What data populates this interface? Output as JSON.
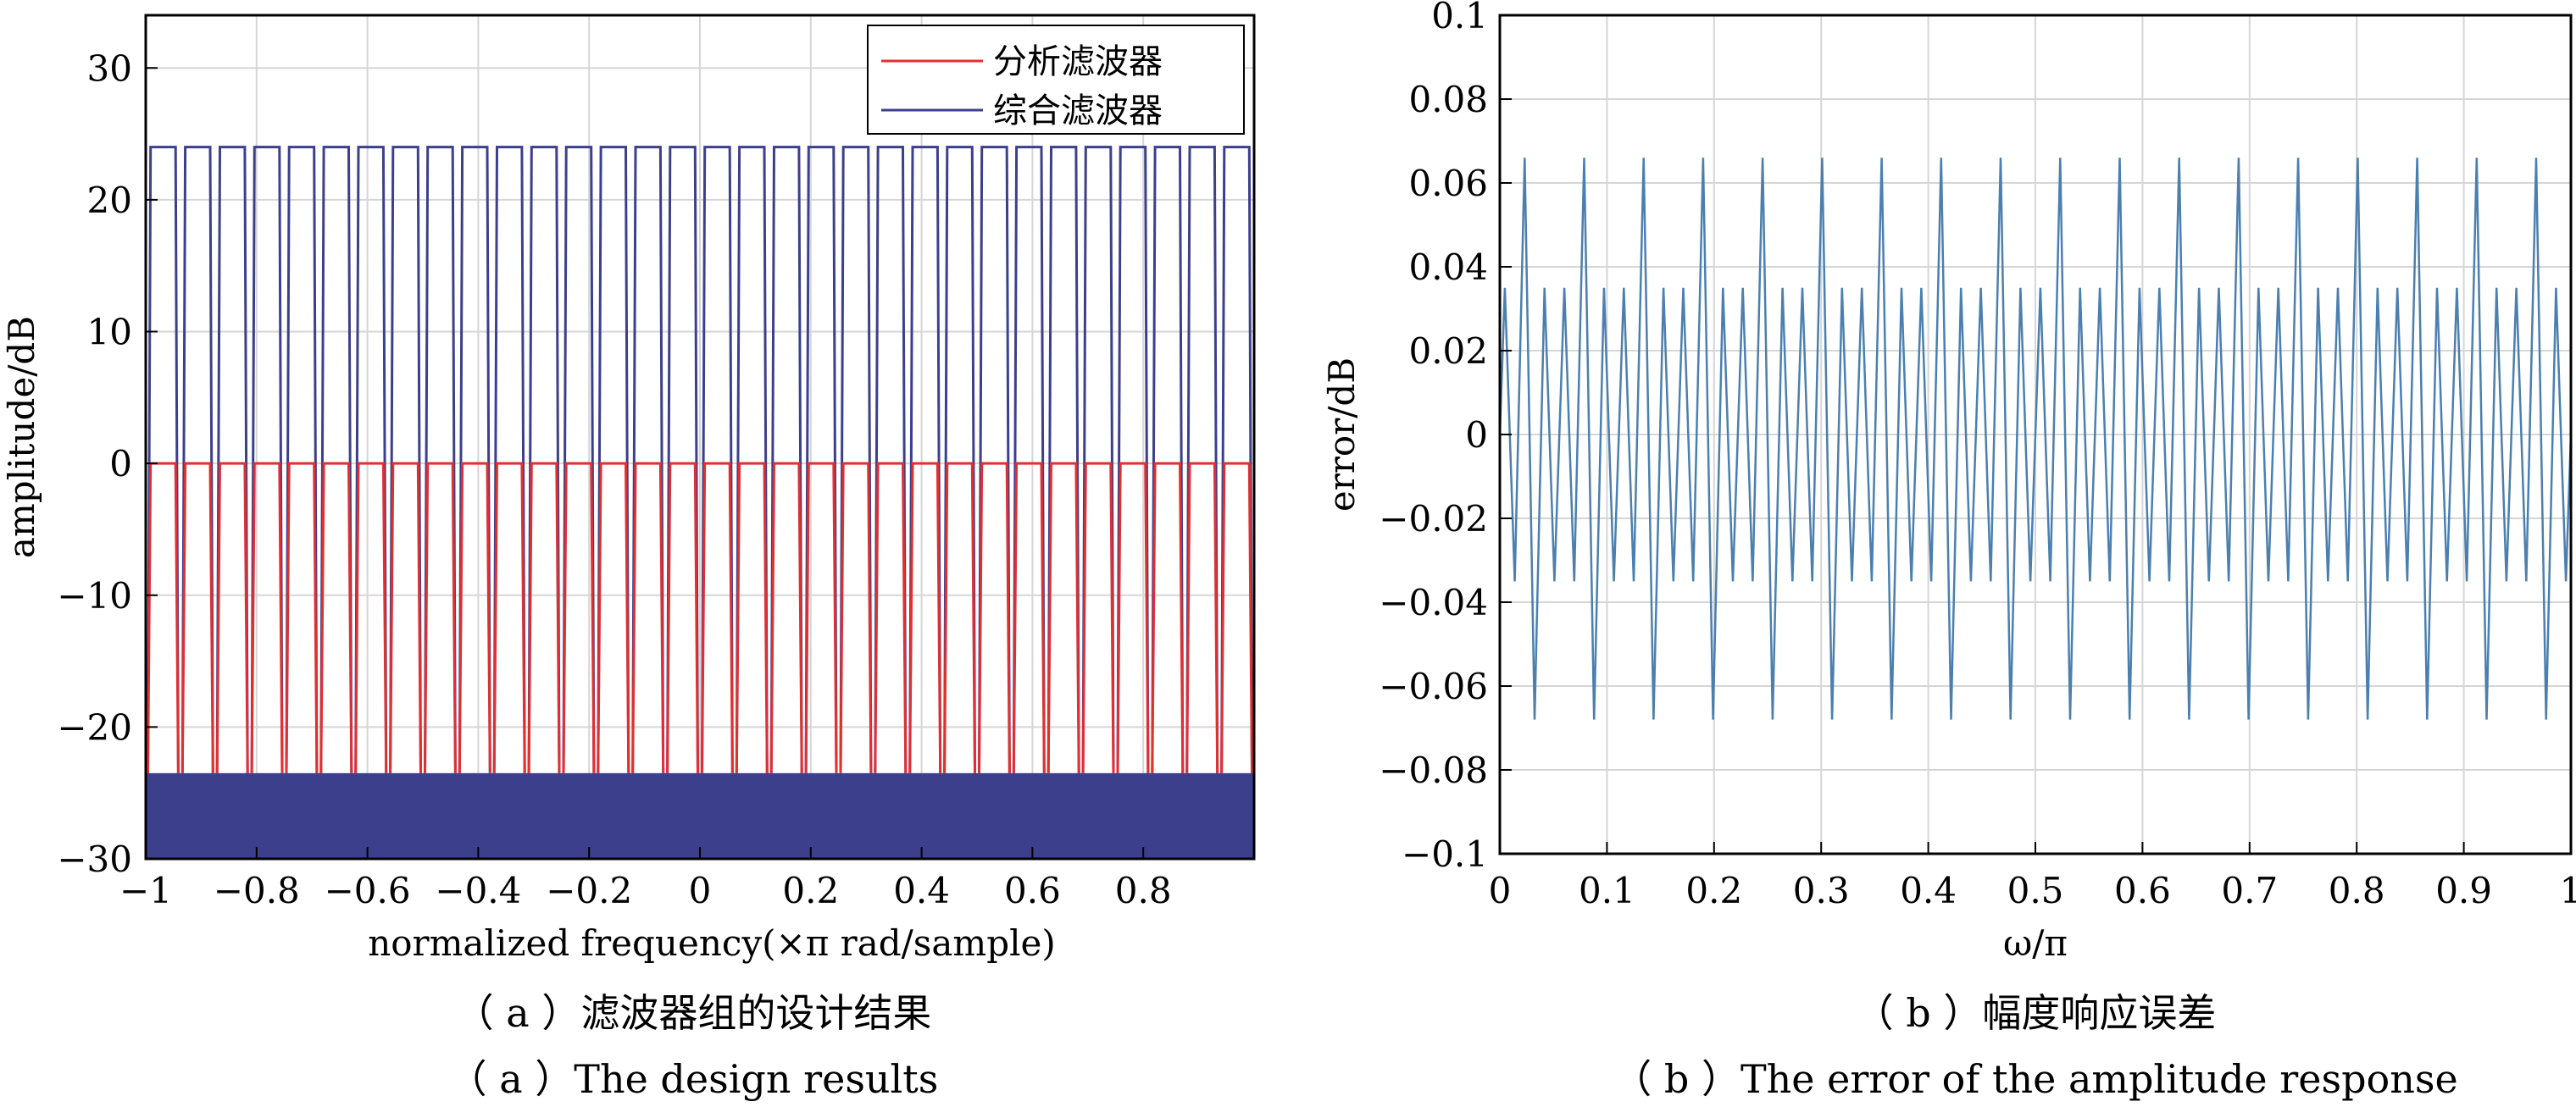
{
  "chart_data": [
    {
      "type": "line",
      "xlabel": "normalized frequency(×π rad/sample)",
      "ylabel": "amplitude/dB",
      "xlim": [
        -1,
        1
      ],
      "ylim": [
        -30,
        34
      ],
      "xticks": [
        "−1",
        "−0.8",
        "−0.6",
        "−0.4",
        "−0.2",
        "0",
        "0.2",
        "0.4",
        "0.6",
        "0.8"
      ],
      "yticks": [
        "30",
        "20",
        "10",
        "0",
        "−10",
        "−20",
        "−30"
      ],
      "grid": true,
      "legend": {
        "placement": "top-right",
        "entries": [
          "分析滤波器",
          "综合滤波器"
        ]
      },
      "series": [
        {
          "name": "分析滤波器",
          "color": "#e03030",
          "channels": 32,
          "passband_db": 0,
          "stopband_floor_db": -23.5,
          "channel_spacing": 0.0625
        },
        {
          "name": "综合滤波器",
          "color": "#3c3f8c",
          "channels": 32,
          "passband_db": 24,
          "stopband_floor_db": -23.5,
          "channel_spacing": 0.0625
        }
      ],
      "noise_floor_fill": {
        "color": "#3c3f8c",
        "from_db": -30,
        "to_db": -23.5
      }
    },
    {
      "type": "line",
      "xlabel": "ω/π",
      "ylabel": "error/dB",
      "xlim": [
        0,
        1
      ],
      "ylim": [
        -0.1,
        0.1
      ],
      "xticks": [
        "0",
        "0.1",
        "0.2",
        "0.3",
        "0.4",
        "0.5",
        "0.6",
        "0.7",
        "0.8",
        "0.9",
        "1"
      ],
      "yticks": [
        "0.1",
        "0.08",
        "0.06",
        "0.04",
        "0.02",
        "0",
        "−0.02",
        "−0.04",
        "−0.06",
        "−0.08",
        "−0.1"
      ],
      "grid": true,
      "series": [
        {
          "color": "#4a7fb0",
          "oscillations": 54,
          "pattern": {
            "peak_max": 0.066,
            "peak_min": 0.035,
            "trough_min": -0.068,
            "trough_max": -0.035,
            "large_every": 3
          }
        }
      ]
    }
  ],
  "captions": {
    "left_cn": "（ a ）滤波器组的设计结果",
    "left_en": "（ a ）The design results",
    "right_cn": "（ b ）幅度响应误差",
    "right_en": "（ b ）The error of the amplitude response"
  }
}
